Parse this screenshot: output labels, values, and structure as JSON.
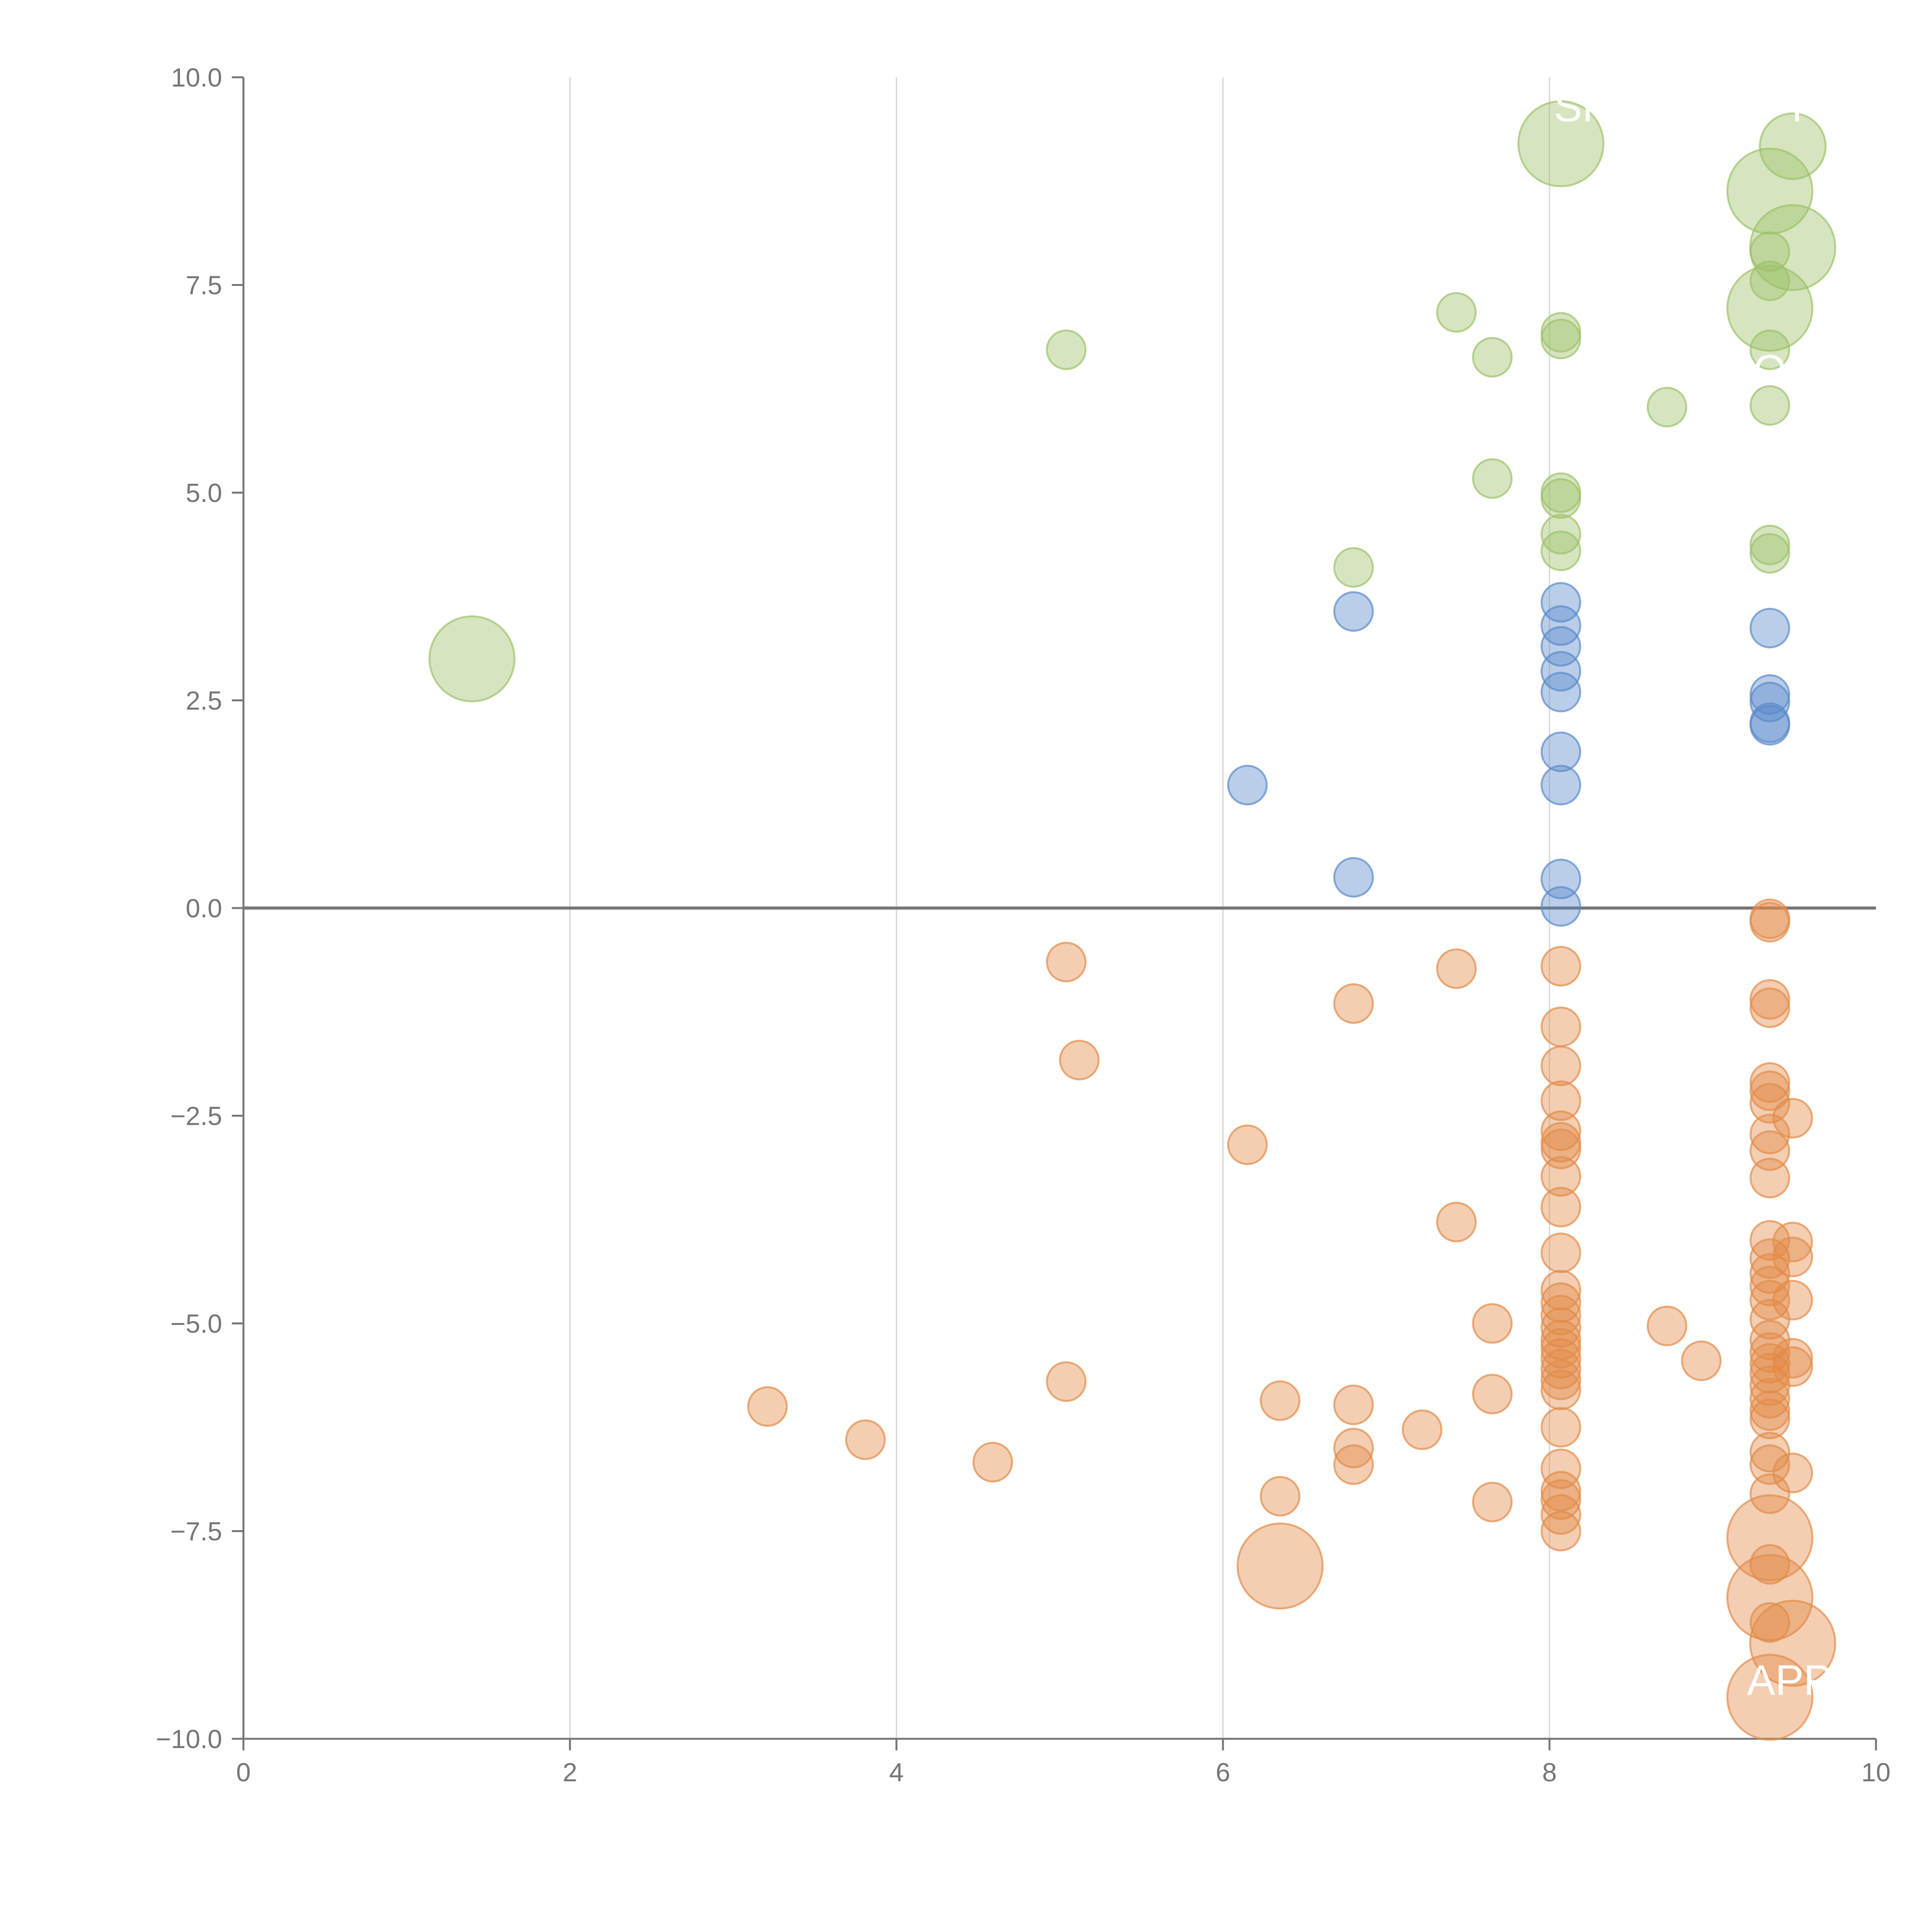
{
  "colors": {
    "green": "#9dc26a",
    "blue": "#5b8acb",
    "orange": "#e38b48",
    "axis": "#767676",
    "grid": "#dcdcdc",
    "label": "#ffffff"
  },
  "chart_data": {
    "type": "scatter",
    "title": "",
    "xlabel": "",
    "ylabel": "",
    "xlim": [
      0,
      10
    ],
    "ylim": [
      -10,
      10
    ],
    "x_ticks": [
      "0",
      "2",
      "4",
      "6",
      "8",
      "10"
    ],
    "y_ticks": [
      "10.0",
      "7.5",
      "5.0",
      "2.5",
      "0.0",
      "−2.5",
      "−5.0",
      "−7.5",
      "−10.0"
    ],
    "grid": "vertical",
    "zero_line": 0,
    "series": [
      {
        "name": "green",
        "color_key": "green",
        "points": [
          [
            1.4,
            3.0,
            2.2
          ],
          [
            5.04,
            6.72,
            1
          ],
          [
            6.8,
            4.1,
            1
          ],
          [
            7.43,
            7.17,
            1
          ],
          [
            7.65,
            6.63,
            1
          ],
          [
            7.65,
            5.17,
            1
          ],
          [
            8.07,
            6.93,
            1
          ],
          [
            8.07,
            6.85,
            1
          ],
          [
            8.07,
            5.0,
            1
          ],
          [
            8.07,
            4.93,
            1
          ],
          [
            8.07,
            4.5,
            1
          ],
          [
            8.07,
            4.3,
            1
          ],
          [
            8.07,
            9.2,
            2.2
          ],
          [
            8.72,
            6.03,
            1
          ],
          [
            9.35,
            8.63,
            2.2
          ],
          [
            9.49,
            9.17,
            1.7
          ],
          [
            9.35,
            7.9,
            1
          ],
          [
            9.49,
            7.95,
            2.2
          ],
          [
            9.35,
            7.55,
            1
          ],
          [
            9.35,
            7.22,
            2.2
          ],
          [
            9.35,
            6.72,
            1
          ],
          [
            9.35,
            6.05,
            1
          ],
          [
            9.35,
            4.37,
            1
          ],
          [
            9.35,
            4.27,
            1
          ]
        ]
      },
      {
        "name": "blue",
        "color_key": "blue",
        "points": [
          [
            6.8,
            3.57,
            1
          ],
          [
            6.8,
            0.37,
            1
          ],
          [
            6.15,
            1.48,
            1
          ],
          [
            8.07,
            3.68,
            1
          ],
          [
            8.07,
            3.4,
            1
          ],
          [
            8.07,
            3.15,
            1
          ],
          [
            8.07,
            2.85,
            1
          ],
          [
            8.07,
            2.6,
            1
          ],
          [
            8.07,
            1.88,
            1
          ],
          [
            8.07,
            1.48,
            1
          ],
          [
            8.07,
            0.35,
            1
          ],
          [
            8.07,
            0.02,
            1
          ],
          [
            9.35,
            3.37,
            1
          ],
          [
            9.35,
            2.57,
            1
          ],
          [
            9.35,
            2.48,
            1
          ],
          [
            9.35,
            2.23,
            1
          ],
          [
            9.35,
            2.2,
            1
          ]
        ]
      },
      {
        "name": "orange",
        "color_key": "orange",
        "points": [
          [
            3.21,
            -6.0,
            1
          ],
          [
            3.81,
            -6.4,
            1
          ],
          [
            4.59,
            -6.67,
            1
          ],
          [
            5.04,
            -0.65,
            1
          ],
          [
            5.12,
            -1.83,
            1
          ],
          [
            5.04,
            -5.7,
            1
          ],
          [
            6.15,
            -2.85,
            1
          ],
          [
            6.35,
            -5.93,
            1
          ],
          [
            6.35,
            -7.08,
            1
          ],
          [
            6.35,
            -7.92,
            2.2
          ],
          [
            6.8,
            -1.15,
            1
          ],
          [
            6.8,
            -5.98,
            1
          ],
          [
            6.8,
            -6.5,
            1
          ],
          [
            6.8,
            -6.7,
            1
          ],
          [
            7.22,
            -6.28,
            1
          ],
          [
            7.43,
            -0.73,
            1
          ],
          [
            7.43,
            -3.78,
            1
          ],
          [
            7.65,
            -5.0,
            1
          ],
          [
            7.65,
            -5.85,
            1
          ],
          [
            7.65,
            -7.15,
            1
          ],
          [
            8.07,
            -0.7,
            1
          ],
          [
            8.07,
            -1.43,
            1
          ],
          [
            8.07,
            -1.9,
            1
          ],
          [
            8.07,
            -2.32,
            1
          ],
          [
            8.07,
            -2.68,
            1
          ],
          [
            8.07,
            -2.82,
            1
          ],
          [
            8.07,
            -2.9,
            1
          ],
          [
            8.07,
            -3.23,
            1
          ],
          [
            8.07,
            -3.6,
            1
          ],
          [
            8.07,
            -4.15,
            1
          ],
          [
            8.07,
            -4.6,
            1
          ],
          [
            8.07,
            -4.75,
            1
          ],
          [
            8.07,
            -4.9,
            1
          ],
          [
            8.07,
            -5.05,
            1
          ],
          [
            8.07,
            -5.2,
            1
          ],
          [
            8.07,
            -5.3,
            1
          ],
          [
            8.07,
            -5.42,
            1
          ],
          [
            8.07,
            -5.55,
            1
          ],
          [
            8.07,
            -5.68,
            1
          ],
          [
            8.07,
            -5.8,
            1
          ],
          [
            8.07,
            -6.25,
            1
          ],
          [
            8.07,
            -6.75,
            1
          ],
          [
            8.07,
            -7.02,
            1
          ],
          [
            8.07,
            -7.12,
            1
          ],
          [
            8.07,
            -7.3,
            1
          ],
          [
            8.07,
            -7.5,
            1
          ],
          [
            8.72,
            -5.03,
            1
          ],
          [
            8.93,
            -5.45,
            1
          ],
          [
            9.35,
            -0.13,
            1
          ],
          [
            9.35,
            -0.17,
            1
          ],
          [
            9.35,
            -1.1,
            1
          ],
          [
            9.35,
            -1.2,
            1
          ],
          [
            9.35,
            -2.1,
            1
          ],
          [
            9.35,
            -2.2,
            1
          ],
          [
            9.35,
            -2.35,
            1
          ],
          [
            9.35,
            -2.72,
            1
          ],
          [
            9.35,
            -2.92,
            1
          ],
          [
            9.35,
            -3.25,
            1
          ],
          [
            9.35,
            -4.0,
            1
          ],
          [
            9.35,
            -4.22,
            1
          ],
          [
            9.35,
            -4.4,
            1
          ],
          [
            9.35,
            -4.55,
            1
          ],
          [
            9.35,
            -4.72,
            1
          ],
          [
            9.35,
            -4.95,
            1
          ],
          [
            9.35,
            -5.2,
            1
          ],
          [
            9.35,
            -5.35,
            1
          ],
          [
            9.35,
            -5.48,
            1
          ],
          [
            9.35,
            -5.6,
            1
          ],
          [
            9.35,
            -5.75,
            1
          ],
          [
            9.35,
            -5.9,
            1
          ],
          [
            9.35,
            -6.05,
            1
          ],
          [
            9.35,
            -6.15,
            1
          ],
          [
            9.35,
            -6.55,
            1
          ],
          [
            9.35,
            -6.7,
            1
          ],
          [
            9.35,
            -7.05,
            1
          ],
          [
            9.35,
            -7.58,
            2.2
          ],
          [
            9.35,
            -7.9,
            1
          ],
          [
            9.35,
            -8.3,
            2.2
          ],
          [
            9.35,
            -8.6,
            1
          ],
          [
            9.35,
            -9.5,
            2.2
          ],
          [
            9.49,
            -2.53,
            1
          ],
          [
            9.49,
            -4.02,
            1
          ],
          [
            9.49,
            -4.2,
            1
          ],
          [
            9.49,
            -4.72,
            1
          ],
          [
            9.49,
            -5.42,
            1
          ],
          [
            9.49,
            -5.52,
            1
          ],
          [
            9.49,
            -6.8,
            1
          ],
          [
            9.49,
            -8.85,
            2.2
          ]
        ]
      }
    ],
    "annotations": [
      {
        "text": "SK",
        "x": 8.2,
        "y": 9.47
      },
      {
        "text": "PT",
        "x": 9.43,
        "y": 9.47
      },
      {
        "text": "APP",
        "x": 9.47,
        "y": -9.47
      },
      {
        "text": "O",
        "x": 9.35,
        "y": 6.3
      }
    ]
  }
}
